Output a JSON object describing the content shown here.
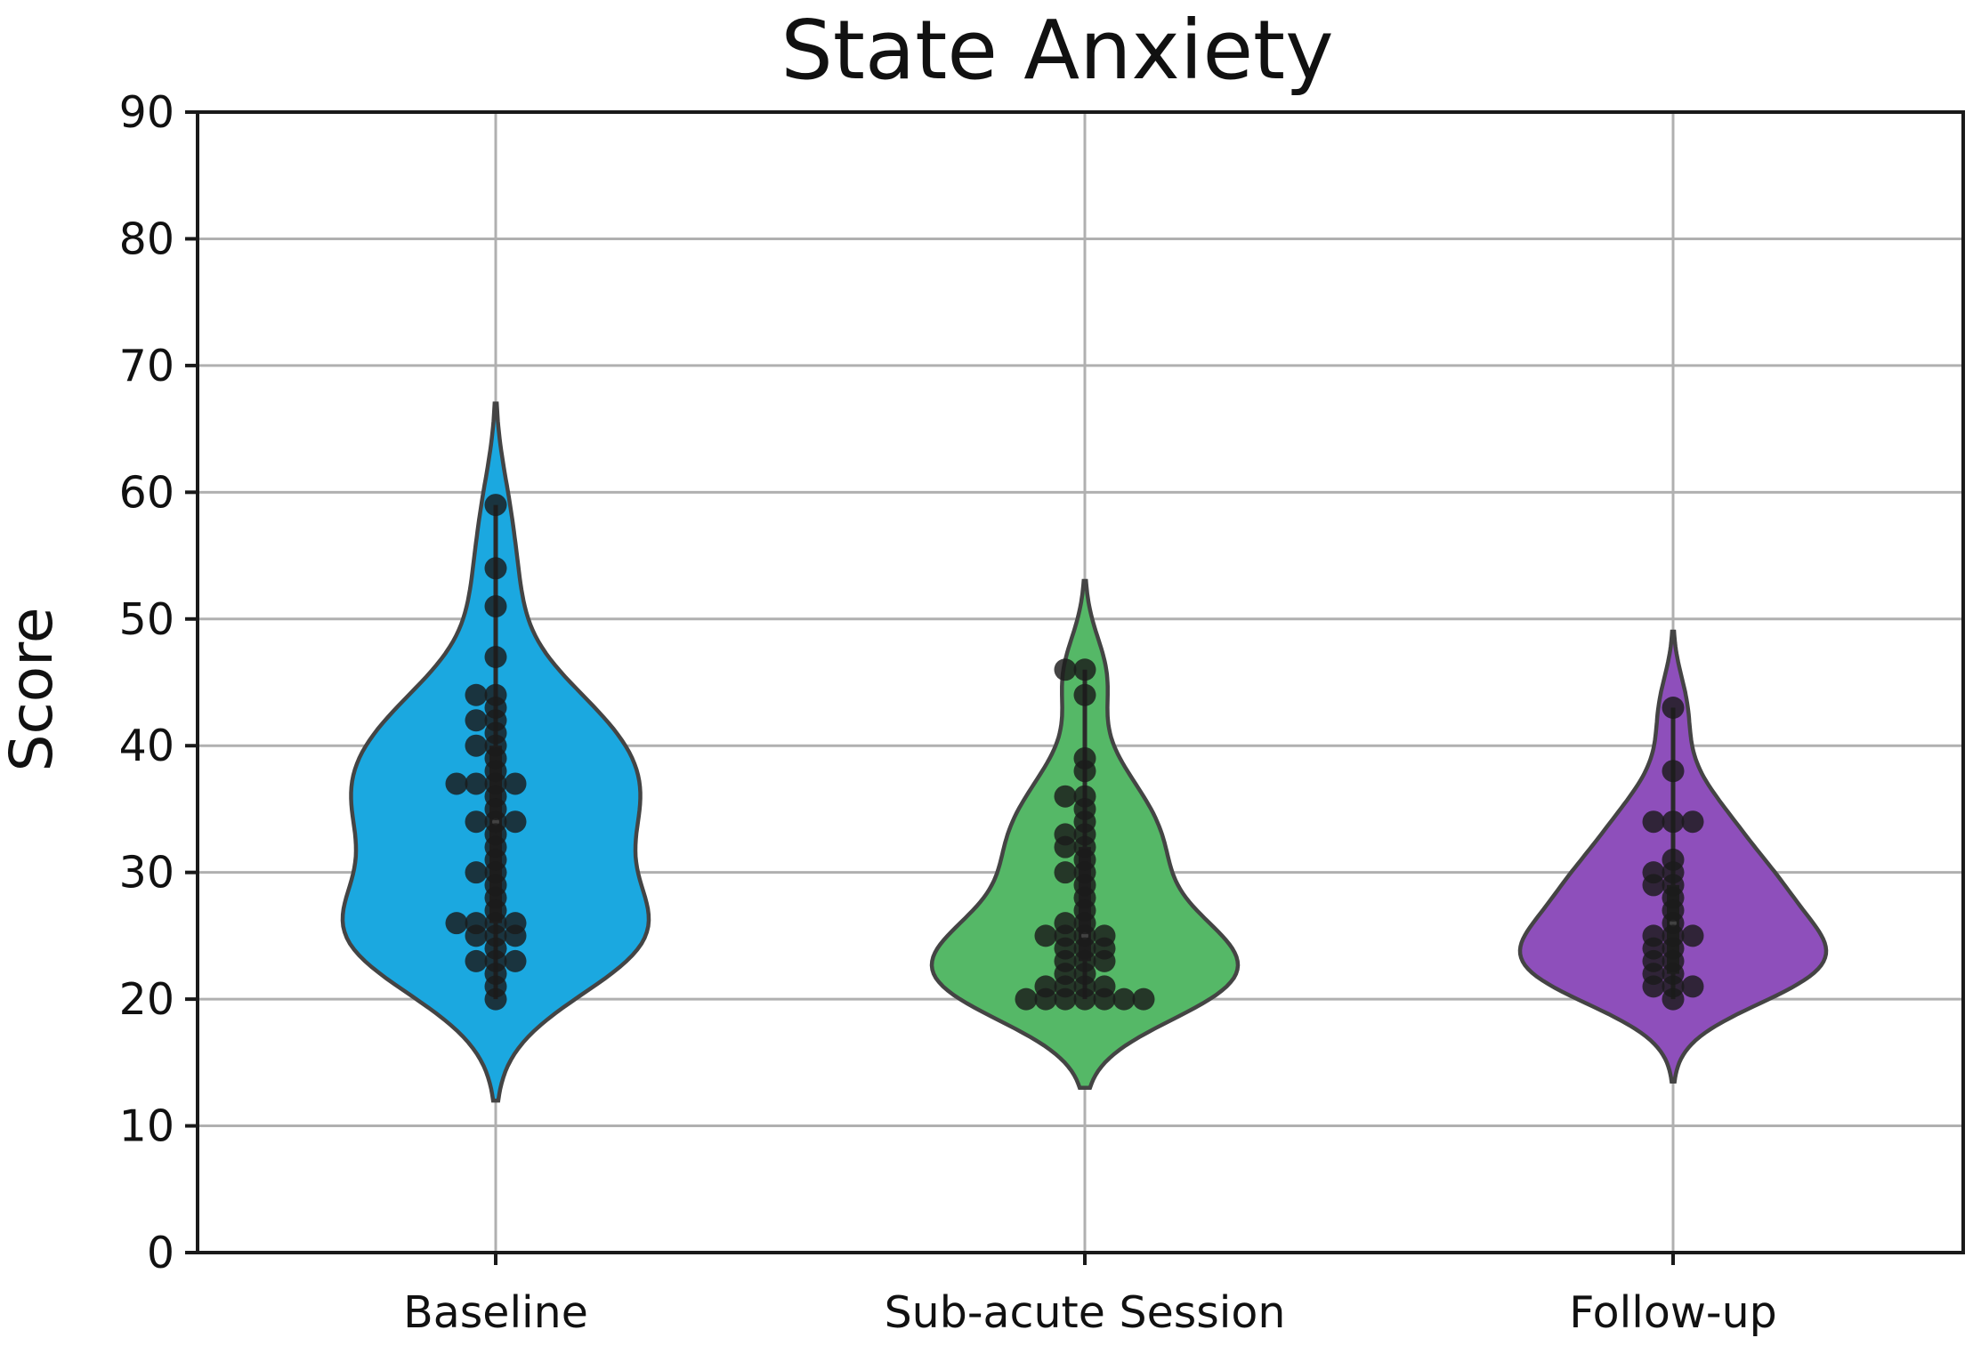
{
  "chart_data": {
    "type": "violin",
    "title": "State Anxiety",
    "xlabel": "",
    "ylabel": "Score",
    "ylim": [
      0,
      90
    ],
    "yticks": [
      0,
      10,
      20,
      30,
      40,
      50,
      60,
      70,
      80,
      90
    ],
    "grid": true,
    "categories": [
      "Baseline",
      "Sub-acute Session",
      "Follow-up"
    ],
    "colors": [
      "#1ba8e0",
      "#55b867",
      "#8e4fbb"
    ],
    "groups": [
      {
        "category": "Baseline",
        "violin_range": [
          12,
          67
        ],
        "quartiles": [
          26,
          34,
          40
        ],
        "whiskers": [
          20,
          59
        ],
        "points": [
          59,
          54,
          51,
          47,
          44,
          44,
          43,
          42,
          42,
          41,
          40,
          40,
          39,
          38,
          37,
          37,
          37,
          37,
          36,
          35,
          34,
          34,
          34,
          33,
          32,
          31,
          30,
          30,
          29,
          28,
          27,
          26,
          26,
          26,
          26,
          25,
          25,
          25,
          24,
          23,
          23,
          23,
          22,
          21,
          20
        ]
      },
      {
        "category": "Sub-acute Session",
        "violin_range": [
          13,
          53
        ],
        "quartiles": [
          23,
          25,
          32
        ],
        "whiskers": [
          20,
          46
        ],
        "points": [
          46,
          46,
          44,
          39,
          38,
          36,
          36,
          35,
          34,
          33,
          33,
          32,
          32,
          31,
          30,
          30,
          29,
          28,
          27,
          26,
          26,
          25,
          25,
          25,
          25,
          24,
          24,
          24,
          23,
          23,
          23,
          22,
          22,
          21,
          21,
          21,
          21,
          20,
          20,
          20,
          20,
          20,
          20,
          20
        ]
      },
      {
        "category": "Follow-up",
        "violin_range": [
          13.5,
          49
        ],
        "quartiles": [
          22,
          26,
          29
        ],
        "whiskers": [
          20,
          43
        ],
        "points": [
          43,
          38,
          34,
          34,
          34,
          31,
          30,
          30,
          29,
          29,
          28,
          27,
          26,
          25,
          25,
          25,
          24,
          24,
          23,
          23,
          22,
          22,
          21,
          21,
          21,
          20
        ]
      }
    ]
  }
}
